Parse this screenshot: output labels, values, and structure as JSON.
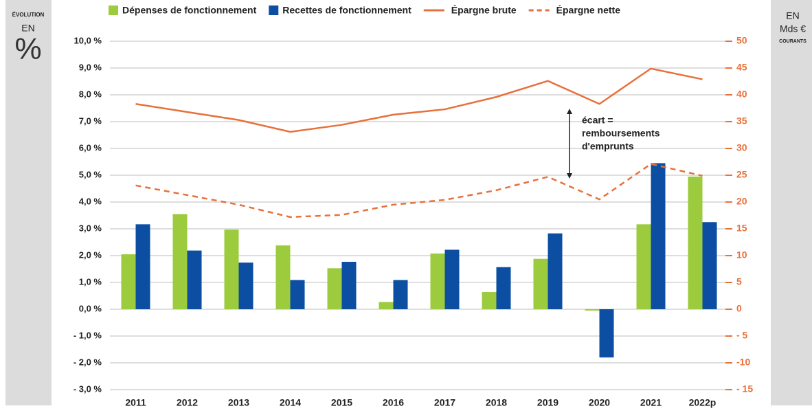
{
  "chart_data": {
    "type": "bar",
    "y_label_lines": [
      "ÉVOLUTION",
      "EN",
      "%"
    ],
    "y2_label_lines": [
      "EN",
      "Mds €",
      "COURANTS"
    ],
    "categories": [
      "2011",
      "2012",
      "2013",
      "2014",
      "2015",
      "2016",
      "2017",
      "2018",
      "2019",
      "2020",
      "2021",
      "2022p"
    ],
    "series": [
      {
        "name": "Dépenses de fonctionnement",
        "type": "bar",
        "color": "#9dcb3e",
        "values": [
          2.05,
          3.55,
          2.97,
          2.38,
          1.53,
          0.27,
          2.08,
          0.64,
          1.88,
          -0.05,
          3.17,
          4.95
        ]
      },
      {
        "name": "Recettes de fonctionnement",
        "type": "bar",
        "color": "#0b4ea2",
        "values": [
          3.17,
          2.19,
          1.74,
          1.09,
          1.77,
          1.09,
          2.22,
          1.57,
          2.83,
          -1.8,
          5.45,
          3.25
        ]
      },
      {
        "name": "Épargne brute",
        "type": "line",
        "axis": "y2",
        "color": "#e8703a",
        "linestyle": "solid",
        "values": [
          38.3,
          36.8,
          35.3,
          33.1,
          34.4,
          36.3,
          37.3,
          39.6,
          42.6,
          38.3,
          44.9,
          42.9
        ]
      },
      {
        "name": "Épargne nette",
        "type": "line",
        "axis": "y2",
        "color": "#e8703a",
        "linestyle": "dashed",
        "values": [
          23.1,
          21.3,
          19.5,
          17.2,
          17.6,
          19.5,
          20.4,
          22.2,
          24.7,
          20.5,
          27.1,
          24.9
        ]
      }
    ],
    "ylim": [
      -3,
      10
    ],
    "yticks": [
      {
        "value": 10,
        "label": "10,0 %"
      },
      {
        "value": 9,
        "label": "9,0 %"
      },
      {
        "value": 8,
        "label": "8,0 %"
      },
      {
        "value": 7,
        "label": "7,0 %"
      },
      {
        "value": 6,
        "label": "6,0 %"
      },
      {
        "value": 5,
        "label": "5,0 %"
      },
      {
        "value": 4,
        "label": "4,0 %"
      },
      {
        "value": 3,
        "label": "3,0 %"
      },
      {
        "value": 2,
        "label": "2,0 %"
      },
      {
        "value": 1,
        "label": "1,0 %"
      },
      {
        "value": 0,
        "label": "0,0 %"
      },
      {
        "value": -1,
        "label": "- 1,0 %"
      },
      {
        "value": -2,
        "label": "- 2,0 %"
      },
      {
        "value": -3,
        "label": "- 3,0 %"
      }
    ],
    "y2lim": [
      -15,
      50
    ],
    "y2ticks": [
      50,
      45,
      40,
      35,
      30,
      25,
      20,
      15,
      10,
      5,
      0,
      {
        "value": -5,
        "label": "- 5"
      },
      {
        "value": -10,
        "label": "-10"
      },
      {
        "value": -15,
        "label": "- 15"
      }
    ],
    "grid": true,
    "legend": "top",
    "annotation": {
      "lines": [
        "écart =",
        "remboursements",
        "d'emprunts"
      ],
      "category": "2019"
    }
  }
}
